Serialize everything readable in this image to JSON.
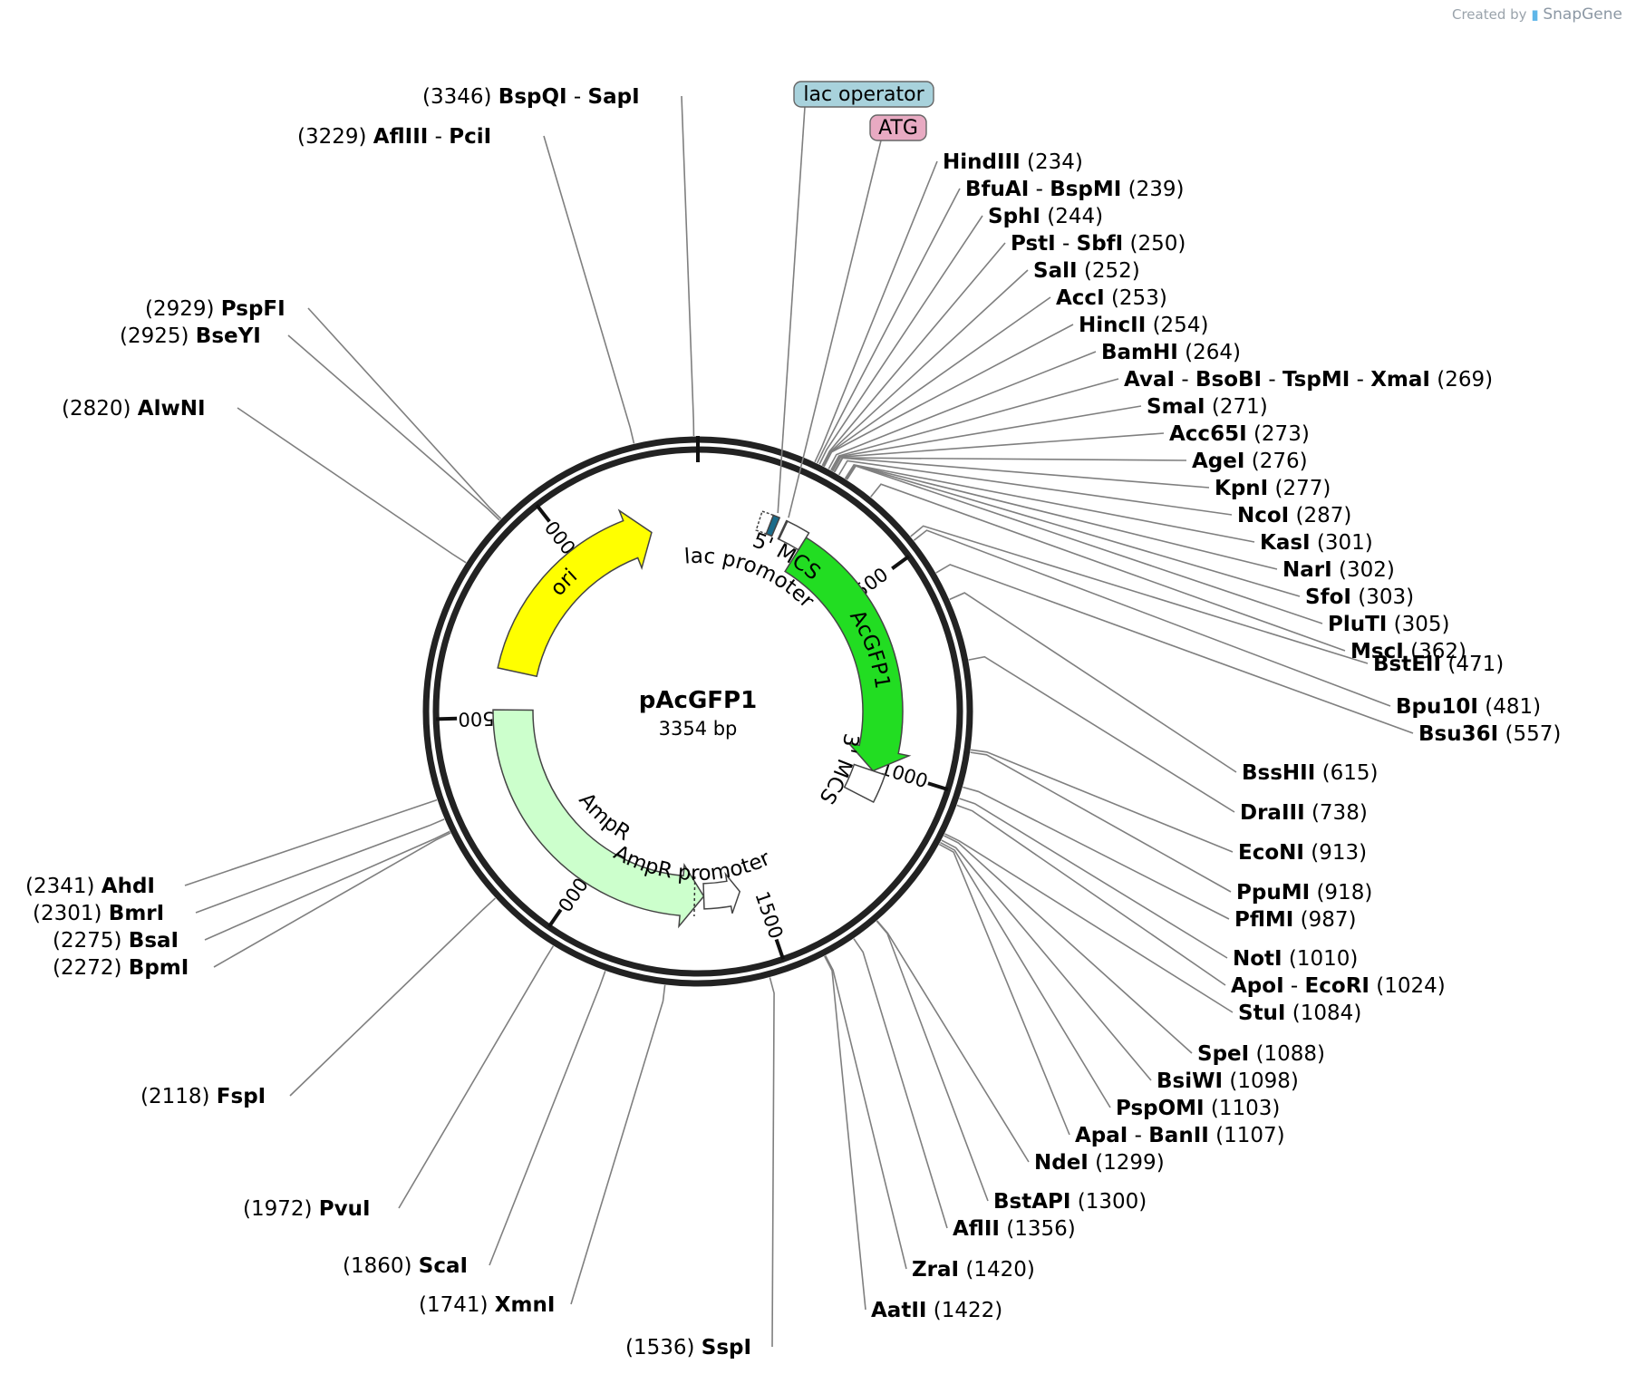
{
  "credit": {
    "prefix": "Created by",
    "brand": "SnapGene"
  },
  "plasmid": {
    "name": "pAcGFP1",
    "size_label": "3354 bp",
    "length": 3354
  },
  "ticks": [
    {
      "pos": 500,
      "label": "500"
    },
    {
      "pos": 1000,
      "label": "1000"
    },
    {
      "pos": 1500,
      "label": "1500"
    },
    {
      "pos": 2000,
      "label": "2000"
    },
    {
      "pos": 2500,
      "label": "2500"
    },
    {
      "pos": 3000,
      "label": "3000"
    }
  ],
  "features": [
    {
      "name": "lac operator",
      "start": 196,
      "end": 213,
      "color": "#1a6b8a",
      "boxed": true,
      "box_color": "#a8d2dc"
    },
    {
      "name": "ATG",
      "start": 232,
      "end": 235,
      "color": "#cc3377",
      "boxed": true,
      "box_color": "#e8aac2"
    },
    {
      "name": "lac promoter",
      "start": 166,
      "end": 197,
      "color": "#ffffff"
    },
    {
      "name": "5' MCS",
      "start": 234,
      "end": 297,
      "color": "#ffffff"
    },
    {
      "name": "AcGFP1",
      "start": 297,
      "end": 1013,
      "color": "#22dd22"
    },
    {
      "name": "3' MCS",
      "start": 1013,
      "end": 1093,
      "color": "#ffffff"
    },
    {
      "name": "AmpR promoter",
      "start": 1555,
      "end": 1660,
      "color": "#ffffff"
    },
    {
      "name": "AmpR",
      "start": 1660,
      "end": 2520,
      "color": "#ccffcc"
    },
    {
      "name": "ori",
      "start": 2630,
      "end": 3219,
      "color": "#ffff00"
    }
  ],
  "sites": [
    {
      "names": [
        "BspQI",
        "SapI"
      ],
      "pos": 3346,
      "side": "left"
    },
    {
      "names": [
        "AflIII",
        "PciI"
      ],
      "pos": 3229,
      "side": "left"
    },
    {
      "names": [
        "PspFI"
      ],
      "pos": 2929,
      "side": "left"
    },
    {
      "names": [
        "BseYI"
      ],
      "pos": 2925,
      "side": "left"
    },
    {
      "names": [
        "AlwNI"
      ],
      "pos": 2820,
      "side": "left"
    },
    {
      "names": [
        "HindIII"
      ],
      "pos": 234,
      "side": "right"
    },
    {
      "names": [
        "BfuAI",
        "BspMI"
      ],
      "pos": 239,
      "side": "right"
    },
    {
      "names": [
        "SphI"
      ],
      "pos": 244,
      "side": "right"
    },
    {
      "names": [
        "PstI",
        "SbfI"
      ],
      "pos": 250,
      "side": "right"
    },
    {
      "names": [
        "SalI"
      ],
      "pos": 252,
      "side": "right"
    },
    {
      "names": [
        "AccI"
      ],
      "pos": 253,
      "side": "right"
    },
    {
      "names": [
        "HincII"
      ],
      "pos": 254,
      "side": "right"
    },
    {
      "names": [
        "BamHI"
      ],
      "pos": 264,
      "side": "right"
    },
    {
      "names": [
        "AvaI",
        "BsoBI",
        "TspMI",
        "XmaI"
      ],
      "pos": 269,
      "side": "right"
    },
    {
      "names": [
        "SmaI"
      ],
      "pos": 271,
      "side": "right"
    },
    {
      "names": [
        "Acc65I"
      ],
      "pos": 273,
      "side": "right"
    },
    {
      "names": [
        "AgeI"
      ],
      "pos": 276,
      "side": "right"
    },
    {
      "names": [
        "KpnI"
      ],
      "pos": 277,
      "side": "right"
    },
    {
      "names": [
        "NcoI"
      ],
      "pos": 287,
      "side": "right"
    },
    {
      "names": [
        "KasI"
      ],
      "pos": 301,
      "side": "right"
    },
    {
      "names": [
        "NarI"
      ],
      "pos": 302,
      "side": "right"
    },
    {
      "names": [
        "SfoI"
      ],
      "pos": 303,
      "side": "right"
    },
    {
      "names": [
        "PluTI"
      ],
      "pos": 305,
      "side": "right"
    },
    {
      "names": [
        "MscI"
      ],
      "pos": 362,
      "side": "right"
    },
    {
      "names": [
        "BstEII"
      ],
      "pos": 471,
      "side": "right"
    },
    {
      "names": [
        "Bpu10I"
      ],
      "pos": 481,
      "side": "right"
    },
    {
      "names": [
        "Bsu36I"
      ],
      "pos": 557,
      "side": "right"
    },
    {
      "names": [
        "BssHII"
      ],
      "pos": 615,
      "side": "right"
    },
    {
      "names": [
        "DraIII"
      ],
      "pos": 738,
      "side": "right"
    },
    {
      "names": [
        "EcoNI"
      ],
      "pos": 913,
      "side": "right"
    },
    {
      "names": [
        "PpuMI"
      ],
      "pos": 918,
      "side": "right"
    },
    {
      "names": [
        "PflMI"
      ],
      "pos": 987,
      "side": "right"
    },
    {
      "names": [
        "NotI"
      ],
      "pos": 1010,
      "side": "right"
    },
    {
      "names": [
        "ApoI",
        "EcoRI"
      ],
      "pos": 1024,
      "side": "right"
    },
    {
      "names": [
        "StuI"
      ],
      "pos": 1084,
      "side": "right"
    },
    {
      "names": [
        "SpeI"
      ],
      "pos": 1088,
      "side": "right"
    },
    {
      "names": [
        "BsiWI"
      ],
      "pos": 1098,
      "side": "right"
    },
    {
      "names": [
        "PspOMI"
      ],
      "pos": 1103,
      "side": "right"
    },
    {
      "names": [
        "ApaI",
        "BanII"
      ],
      "pos": 1107,
      "side": "right"
    },
    {
      "names": [
        "NdeI"
      ],
      "pos": 1299,
      "side": "right"
    },
    {
      "names": [
        "BstAPI"
      ],
      "pos": 1300,
      "side": "right"
    },
    {
      "names": [
        "AflII"
      ],
      "pos": 1356,
      "side": "right"
    },
    {
      "names": [
        "ZraI"
      ],
      "pos": 1420,
      "side": "right"
    },
    {
      "names": [
        "AatII"
      ],
      "pos": 1422,
      "side": "right"
    },
    {
      "names": [
        "SspI"
      ],
      "pos": 1536,
      "side": "left"
    },
    {
      "names": [
        "XmnI"
      ],
      "pos": 1741,
      "side": "left"
    },
    {
      "names": [
        "ScaI"
      ],
      "pos": 1860,
      "side": "left"
    },
    {
      "names": [
        "PvuI"
      ],
      "pos": 1972,
      "side": "left"
    },
    {
      "names": [
        "FspI"
      ],
      "pos": 2118,
      "side": "left"
    },
    {
      "names": [
        "BpmI"
      ],
      "pos": 2272,
      "side": "left"
    },
    {
      "names": [
        "BsaI"
      ],
      "pos": 2275,
      "side": "left"
    },
    {
      "names": [
        "BmrI"
      ],
      "pos": 2301,
      "side": "left"
    },
    {
      "names": [
        "AhdI"
      ],
      "pos": 2341,
      "side": "left"
    }
  ]
}
